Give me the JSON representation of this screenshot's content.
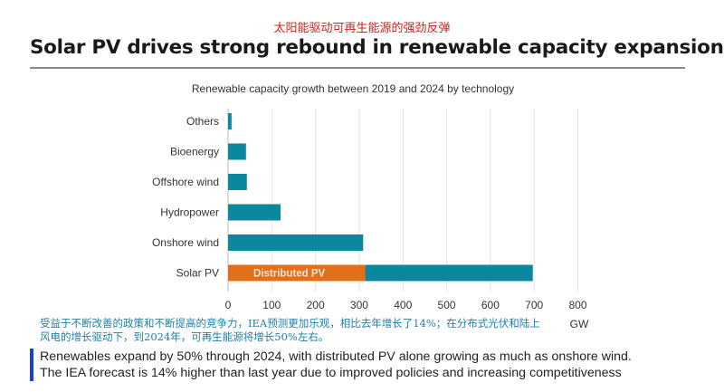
{
  "header": {
    "chinese_title": "太阳能驱动可再生能源的强劲反弹",
    "title": "Solar PV drives strong rebound in renewable capacity expansion"
  },
  "chart_data": {
    "type": "bar",
    "orientation": "horizontal",
    "title": "Renewable capacity growth between 2019 and 2024 by technology",
    "categories": [
      "Others",
      "Bioenergy",
      "Offshore wind",
      "Hydropower",
      "Onshore wind",
      "Solar PV"
    ],
    "values": [
      8,
      41,
      43,
      120,
      309,
      697
    ],
    "annotations": [
      {
        "category": "Solar PV",
        "label": "Distributed PV",
        "value": 314
      }
    ],
    "xlabel": "GW",
    "xlim": [
      0,
      800
    ],
    "xticks": [
      0,
      100,
      200,
      300,
      400,
      500,
      600,
      700,
      800
    ],
    "grid": "vertical",
    "colors": {
      "bar": "#0b889e",
      "distributed": "#e0701c"
    }
  },
  "notes": {
    "chinese": "受益于不断改善的政策和不断提高的竞争力，IEA预测更加乐观，相比去年增长了14%；在分布式光伏和陆上风电的增长驱动下，到2024年，可再生能源将增长50%左右。",
    "line1": "Renewables expand by 50% through 2024, with distributed PV alone growing as much as onshore wind.",
    "line2": "The IEA forecast is 14% higher than last year due to improved policies and increasing competitiveness"
  }
}
